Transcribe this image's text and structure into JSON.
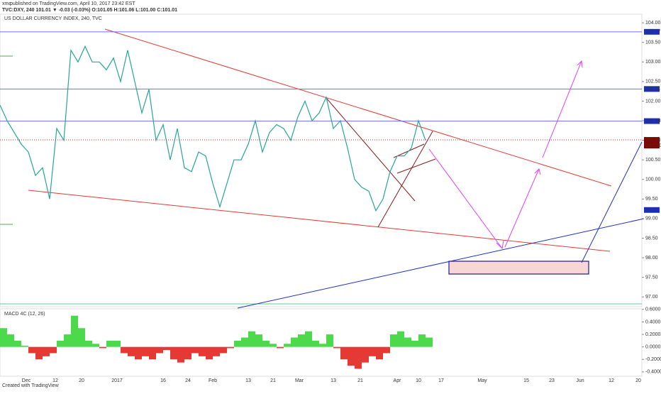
{
  "header": {
    "author": "xmc",
    "published": "published on TradingView.com, April 10, 2017 23:42 EST",
    "symbol_line": "TVC:DXY, 240  101.01 ▼ -0.03 (-0.03%)  O:101.05 H:101.06 L:101.00 C:101.01"
  },
  "chart_data": [
    {
      "type": "line",
      "title": "US DOLLAR CURRENCY INDEX, 240, TVC",
      "color": "#26a69a",
      "ylim": [
        96.75,
        104.22
      ],
      "yticks": [
        {
          "value": 104,
          "label": "104.00"
        },
        {
          "value": 103.5,
          "label": "103.50"
        },
        {
          "value": 103,
          "label": "103.00"
        },
        {
          "value": 102.5,
          "label": "102.50"
        },
        {
          "value": 102,
          "label": "102.00"
        },
        {
          "value": 101.5,
          "label": "101.50"
        },
        {
          "value": 101,
          "label": "101.00"
        },
        {
          "value": 100.5,
          "label": "100.50"
        },
        {
          "value": 100,
          "label": "100.00"
        },
        {
          "value": 99.5,
          "label": "99.50"
        },
        {
          "value": 99,
          "label": "99.00"
        },
        {
          "value": 98.5,
          "label": "98.50"
        },
        {
          "value": 98,
          "label": "98.00"
        },
        {
          "value": 97.5,
          "label": "97.50"
        },
        {
          "value": 97,
          "label": "97.00"
        }
      ],
      "levels": [
        103.77,
        102.31,
        101.49
      ],
      "last_price": 101.01,
      "countdown": "2:17:50",
      "marker": 99.22,
      "values": [
        101.9,
        101.5,
        101.2,
        100.9,
        100.7,
        100.1,
        100.3,
        99.5,
        101.3,
        101.0,
        103.3,
        103.0,
        103.4,
        103.0,
        103.0,
        102.8,
        103.1,
        102.5,
        103.3,
        102.5,
        101.7,
        102.3,
        101.0,
        101.4,
        100.5,
        101.3,
        100.3,
        100.2,
        100.7,
        100.6,
        99.9,
        99.3,
        99.9,
        100.5,
        100.5,
        100.9,
        101.5,
        100.7,
        101.2,
        101.4,
        101.3,
        101.0,
        101.6,
        102.0,
        101.5,
        101.7,
        102.1,
        101.3,
        101.5,
        100.8,
        100.0,
        99.8,
        99.7,
        99.2,
        99.5,
        100.2,
        100.6,
        100.6,
        100.8,
        101.5,
        101.0
      ]
    },
    {
      "type": "bar",
      "title": "MACD 4C (12, 26)",
      "ylim": [
        -0.47,
        0.61
      ],
      "yticks": [
        {
          "value": 0.6,
          "label": "0.6000"
        },
        {
          "value": 0.4,
          "label": "0.4000"
        },
        {
          "value": 0.2,
          "label": "0.2000"
        },
        {
          "value": 0,
          "label": "0.0000"
        },
        {
          "value": -0.2,
          "label": "-0.2000"
        },
        {
          "value": -0.4,
          "label": "-0.4000"
        }
      ],
      "values": [
        0.3,
        0.2,
        0.1,
        0.02,
        -0.1,
        -0.2,
        -0.15,
        -0.1,
        0.1,
        0.2,
        0.5,
        0.3,
        0.1,
        0.05,
        -0.02,
        0.1,
        0.1,
        -0.1,
        -0.15,
        -0.2,
        -0.15,
        -0.2,
        -0.1,
        -0.05,
        -0.2,
        -0.25,
        -0.2,
        -0.1,
        -0.15,
        -0.2,
        -0.15,
        -0.1,
        -0.02,
        0.1,
        0.15,
        0.25,
        0.2,
        0.1,
        0.05,
        -0.02,
        0.05,
        0.15,
        0.2,
        0.25,
        0.1,
        0.05,
        0.2,
        -0.02,
        -0.2,
        -0.3,
        -0.35,
        -0.25,
        -0.15,
        -0.2,
        -0.1,
        0.2,
        0.25,
        0.15,
        0.1,
        0.2,
        0.15
      ]
    }
  ],
  "time_axis": [
    "Dec",
    "12",
    "20",
    "2017",
    "16",
    "24",
    "Feb",
    "13",
    "21",
    "Mar",
    "13",
    "21",
    "Apr",
    "10",
    "17",
    "May",
    "15",
    "23",
    "Jun",
    "12",
    "20"
  ],
  "footer": "Created with TradingView"
}
